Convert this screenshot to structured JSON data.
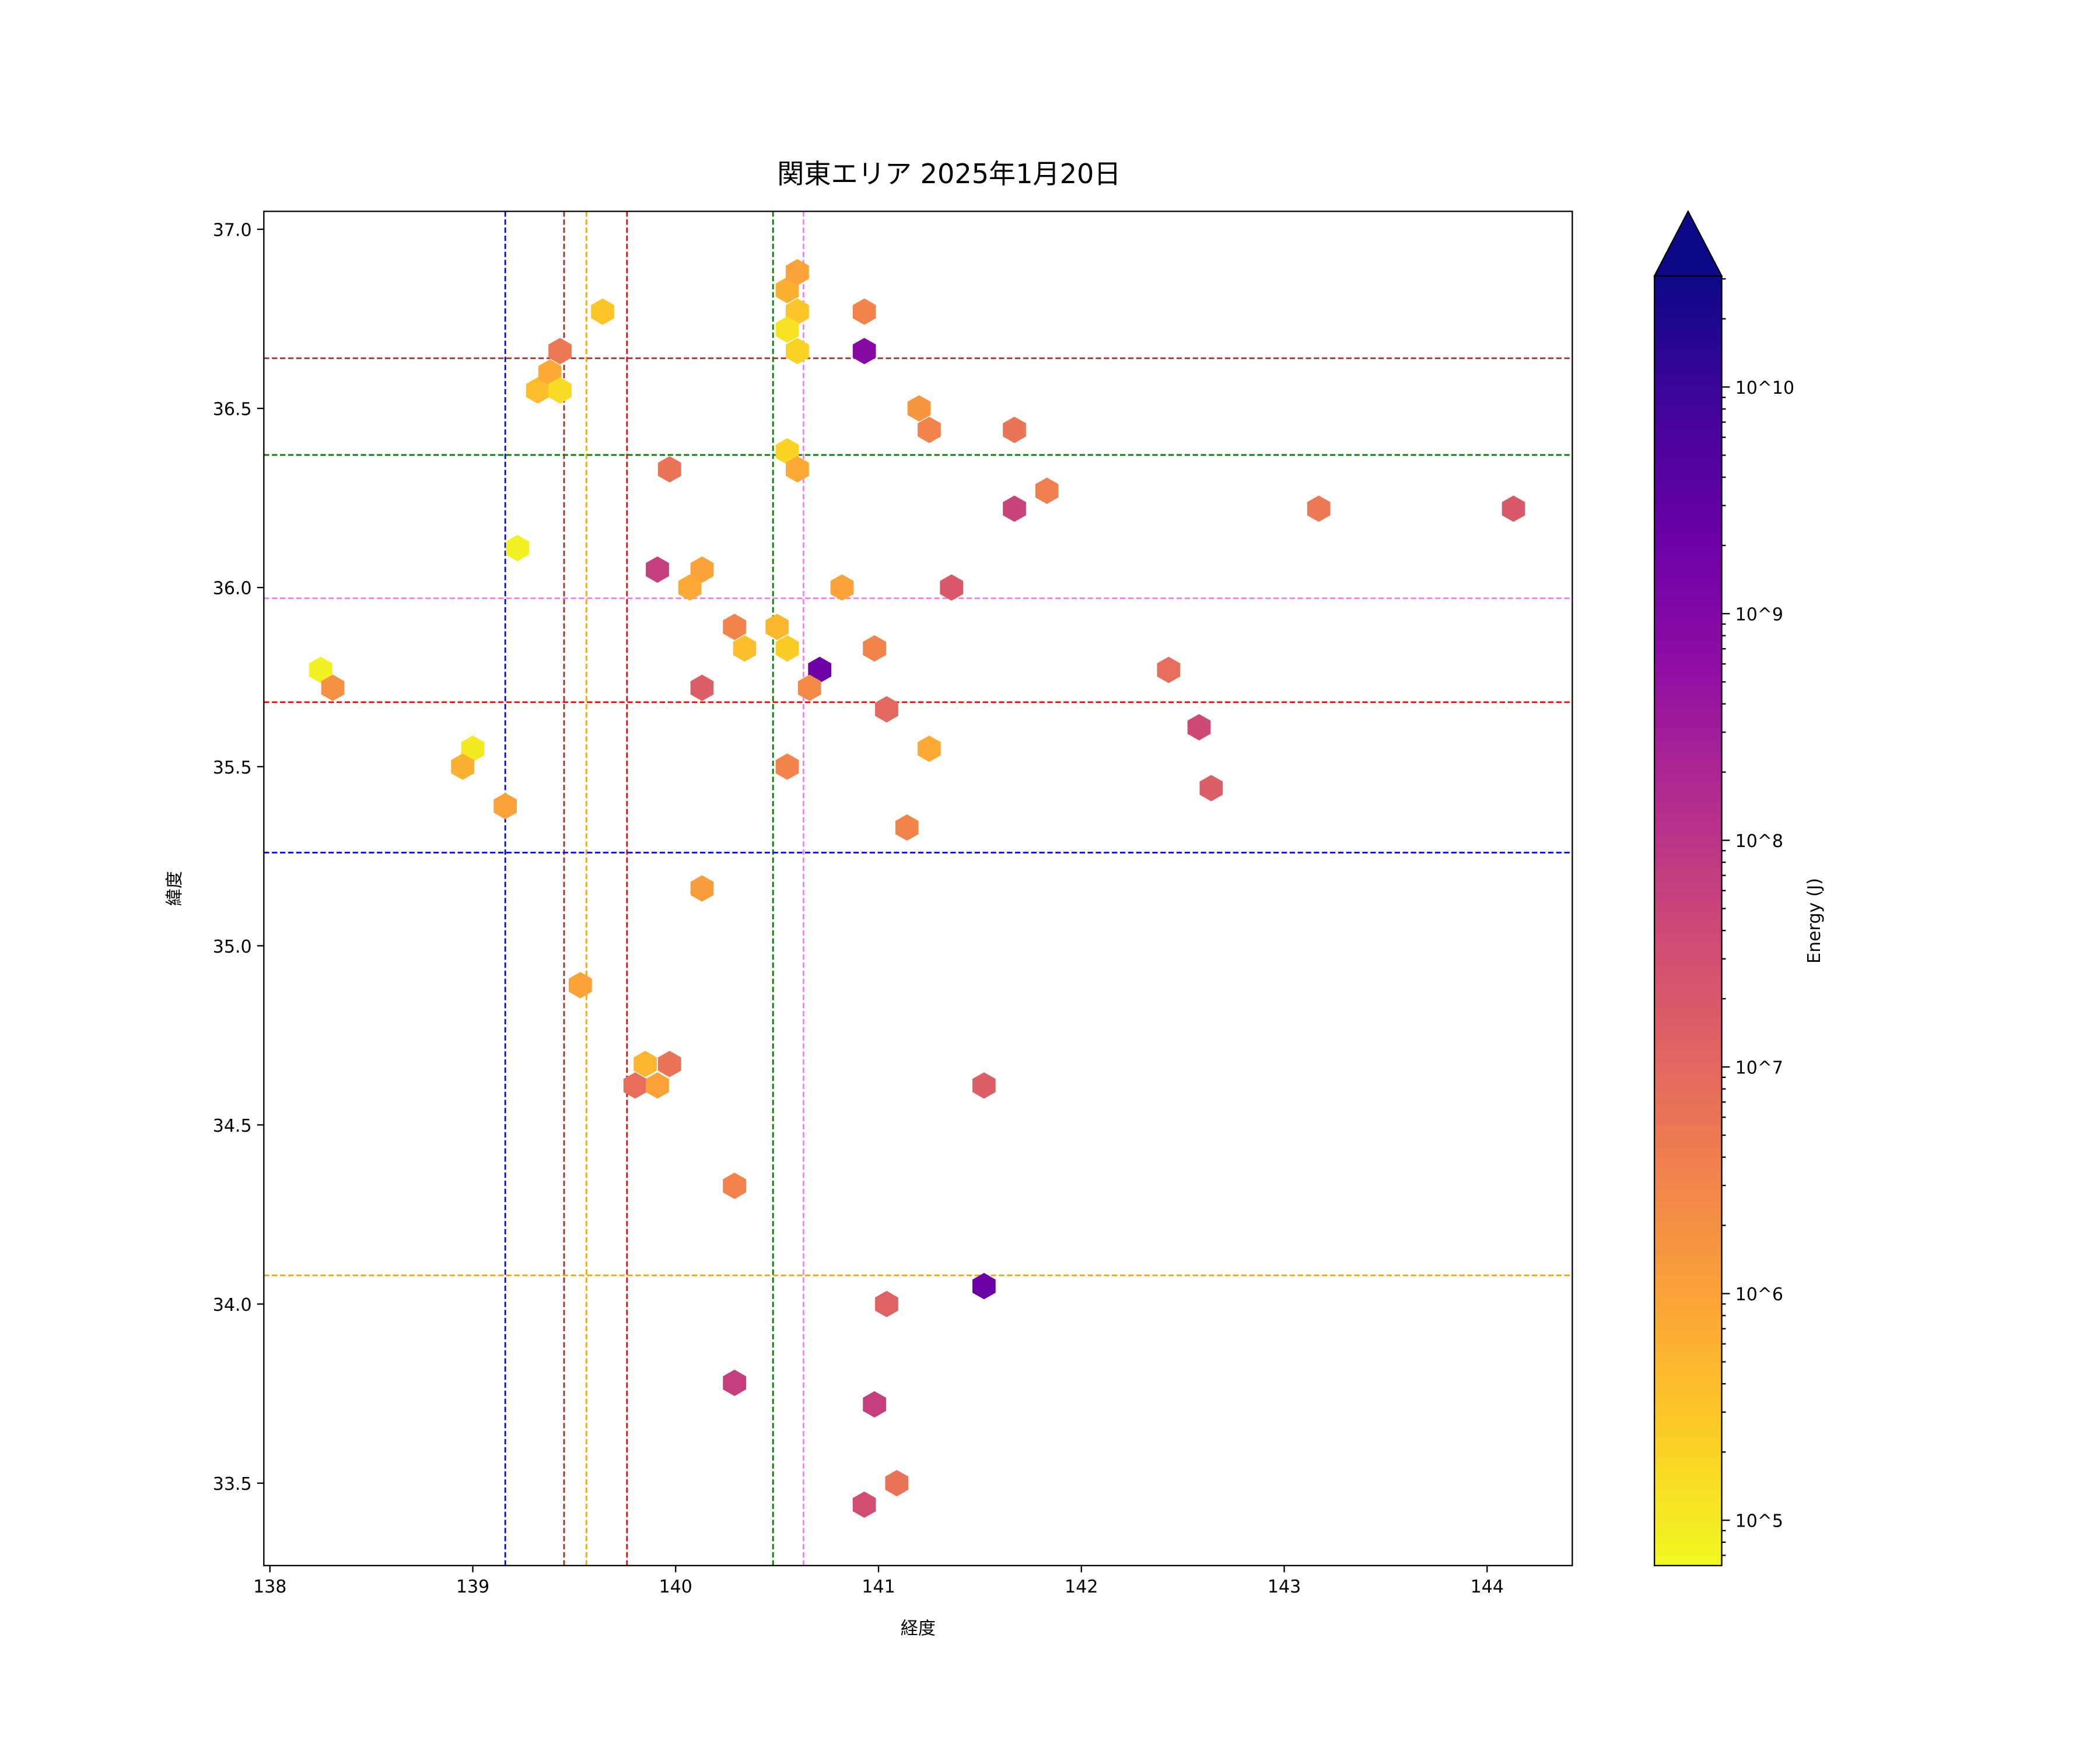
{
  "chart_data": {
    "type": "hexbin",
    "title": "関東エリア 2025年1月20日",
    "xlabel": "経度",
    "ylabel": "緯度",
    "xlim": [
      137.97,
      144.42
    ],
    "ylim": [
      33.27,
      37.05
    ],
    "xticks": [
      138,
      139,
      140,
      141,
      142,
      143,
      144
    ],
    "yticks": [
      33.5,
      34.0,
      34.5,
      35.0,
      35.5,
      36.0,
      36.5,
      37.0
    ],
    "xtick_labels": [
      "138",
      "139",
      "140",
      "141",
      "142",
      "143",
      "144"
    ],
    "ytick_labels": [
      "33.5",
      "34.0",
      "34.5",
      "35.0",
      "35.5",
      "36.0",
      "36.5",
      "37.0"
    ],
    "grid": false,
    "colorbar": {
      "label": "Energy (J)",
      "colormap": "plasma_r",
      "scale": "log",
      "log10_range": [
        4.8,
        10.49
      ],
      "extend": "max",
      "ticks": [
        5,
        6,
        7,
        8,
        9,
        10
      ],
      "tick_labels": [
        "10^5",
        "10^6",
        "10^7",
        "10^8",
        "10^9",
        "10^10"
      ]
    },
    "vlines": [
      {
        "x": 139.16,
        "color": "#0000ff"
      },
      {
        "x": 139.45,
        "color": "#a52a2a"
      },
      {
        "x": 139.56,
        "color": "#ffa500"
      },
      {
        "x": 139.76,
        "color": "#ff0000"
      },
      {
        "x": 140.48,
        "color": "#008000"
      },
      {
        "x": 140.63,
        "color": "#ee82ee"
      }
    ],
    "hlines": [
      {
        "y": 36.64,
        "color": "#a52a2a"
      },
      {
        "y": 36.37,
        "color": "#008000"
      },
      {
        "y": 35.97,
        "color": "#ee82ee"
      },
      {
        "y": 35.68,
        "color": "#ff0000"
      },
      {
        "y": 35.26,
        "color": "#0000ff"
      },
      {
        "y": 34.08,
        "color": "#ffa500"
      }
    ],
    "points": [
      [
        138.25,
        35.77,
        4.9
      ],
      [
        138.31,
        35.72,
        6.3
      ],
      [
        139.0,
        35.55,
        5.0
      ],
      [
        138.95,
        35.5,
        5.8
      ],
      [
        139.16,
        35.39,
        6.0
      ],
      [
        139.22,
        36.11,
        4.9
      ],
      [
        139.32,
        36.55,
        5.6
      ],
      [
        139.38,
        36.6,
        5.9
      ],
      [
        139.43,
        36.66,
        6.7
      ],
      [
        139.43,
        36.55,
        5.2
      ],
      [
        139.64,
        36.77,
        5.5
      ],
      [
        139.53,
        34.89,
        6.0
      ],
      [
        139.85,
        34.67,
        5.7
      ],
      [
        139.8,
        34.61,
        6.9
      ],
      [
        139.91,
        34.61,
        6.0
      ],
      [
        139.97,
        34.67,
        6.8
      ],
      [
        139.97,
        36.33,
        6.8
      ],
      [
        139.91,
        36.05,
        7.8
      ],
      [
        140.07,
        36.0,
        5.9
      ],
      [
        140.13,
        36.05,
        6.0
      ],
      [
        140.13,
        35.72,
        7.2
      ],
      [
        140.29,
        35.89,
        6.5
      ],
      [
        140.34,
        35.83,
        5.6
      ],
      [
        140.13,
        35.16,
        6.1
      ],
      [
        140.29,
        34.33,
        6.5
      ],
      [
        140.29,
        33.78,
        7.8
      ],
      [
        140.5,
        35.89,
        5.7
      ],
      [
        140.55,
        35.83,
        5.4
      ],
      [
        140.55,
        35.5,
        6.5
      ],
      [
        140.55,
        36.83,
        5.8
      ],
      [
        140.6,
        36.88,
        6.0
      ],
      [
        140.6,
        36.77,
        5.5
      ],
      [
        140.55,
        36.72,
        5.1
      ],
      [
        140.6,
        36.66,
        5.3
      ],
      [
        140.55,
        36.38,
        5.3
      ],
      [
        140.6,
        36.33,
        5.9
      ],
      [
        140.71,
        35.77,
        9.3
      ],
      [
        140.66,
        35.72,
        6.4
      ],
      [
        140.82,
        36.0,
        6.0
      ],
      [
        140.93,
        36.77,
        6.5
      ],
      [
        140.93,
        36.66,
        8.9
      ],
      [
        140.98,
        35.83,
        6.5
      ],
      [
        141.04,
        35.66,
        7.0
      ],
      [
        141.14,
        35.33,
        6.5
      ],
      [
        141.2,
        36.5,
        6.2
      ],
      [
        141.25,
        36.44,
        6.5
      ],
      [
        141.25,
        35.55,
        5.9
      ],
      [
        141.36,
        36.0,
        7.3
      ],
      [
        141.52,
        34.61,
        7.2
      ],
      [
        141.52,
        34.05,
        9.3
      ],
      [
        141.04,
        34.0,
        7.1
      ],
      [
        140.98,
        33.72,
        7.8
      ],
      [
        140.93,
        33.44,
        7.5
      ],
      [
        141.09,
        33.5,
        6.8
      ],
      [
        141.67,
        36.44,
        6.8
      ],
      [
        141.67,
        36.22,
        7.7
      ],
      [
        141.83,
        36.27,
        6.6
      ],
      [
        142.43,
        35.77,
        6.9
      ],
      [
        142.58,
        35.61,
        7.6
      ],
      [
        142.64,
        35.44,
        7.2
      ],
      [
        143.17,
        36.22,
        6.7
      ],
      [
        144.13,
        36.22,
        7.3
      ]
    ]
  }
}
